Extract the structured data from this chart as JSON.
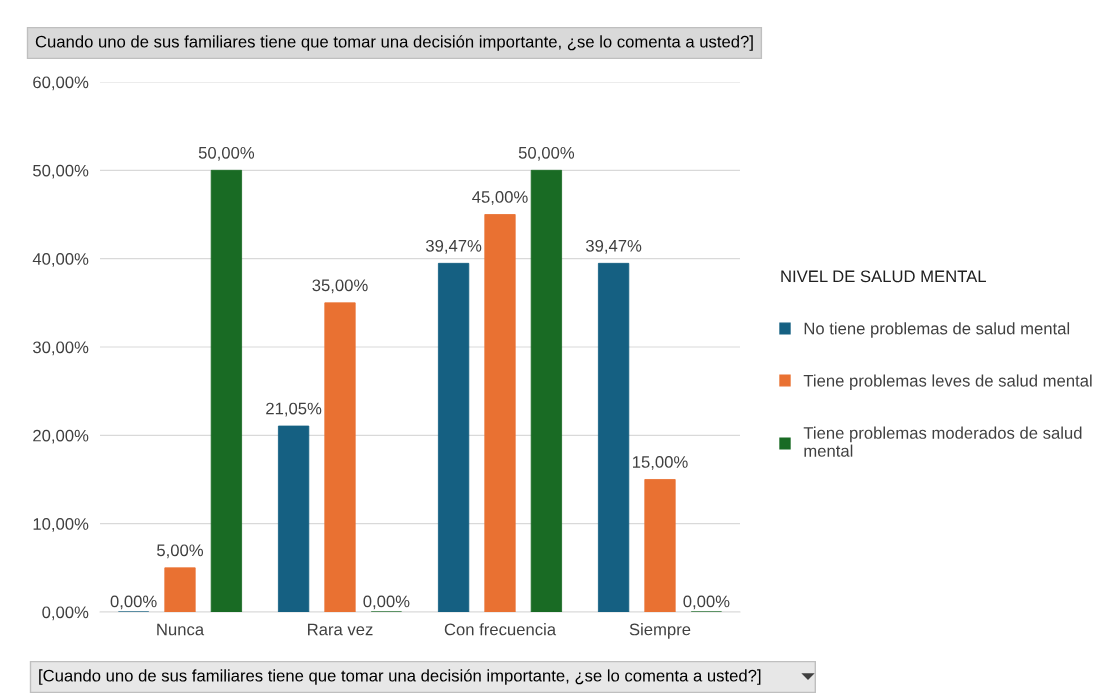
{
  "chart_data": {
    "type": "bar",
    "title": "Cuando uno de sus familiares tiene que tomar una decisión importante, ¿se lo comenta a usted?]",
    "categories": [
      "Nunca",
      "Rara vez",
      "Con frecuencia",
      "Siempre"
    ],
    "series": [
      {
        "name": "No tiene problemas de salud mental",
        "color": "#156082",
        "values": [
          0,
          21.05,
          39.47,
          39.47
        ],
        "value_labels": [
          "0,00%",
          "21,05%",
          "39,47%",
          "39,47%"
        ]
      },
      {
        "name": "Tiene problemas leves de salud mental",
        "color": "#e97132",
        "values": [
          5,
          35,
          45,
          15
        ],
        "value_labels": [
          "5,00%",
          "35,00%",
          "45,00%",
          "15,00%"
        ]
      },
      {
        "name": "Tiene problemas moderados de salud mental",
        "color": "#196b24",
        "values": [
          50,
          0,
          50,
          0
        ],
        "value_labels": [
          "50,00%",
          "0,00%",
          "50,00%",
          "0,00%"
        ]
      }
    ],
    "ylim": [
      0,
      60
    ],
    "yticks": [
      {
        "value": 0,
        "label": "0,00%"
      },
      {
        "value": 10,
        "label": "10,00%"
      },
      {
        "value": 20,
        "label": "20,00%"
      },
      {
        "value": 30,
        "label": "30,00%"
      },
      {
        "value": 40,
        "label": "40,00%"
      },
      {
        "value": 50,
        "label": "50,00%"
      },
      {
        "value": 60,
        "label": "60,00%"
      }
    ],
    "grid": "y",
    "legend": "right",
    "legend_title": "NIVEL DE SALUD MENTAL",
    "annotations": [
      "[Cuando uno de sus familiares tiene que tomar una decisión importante, ¿se lo comenta a usted?]"
    ]
  }
}
